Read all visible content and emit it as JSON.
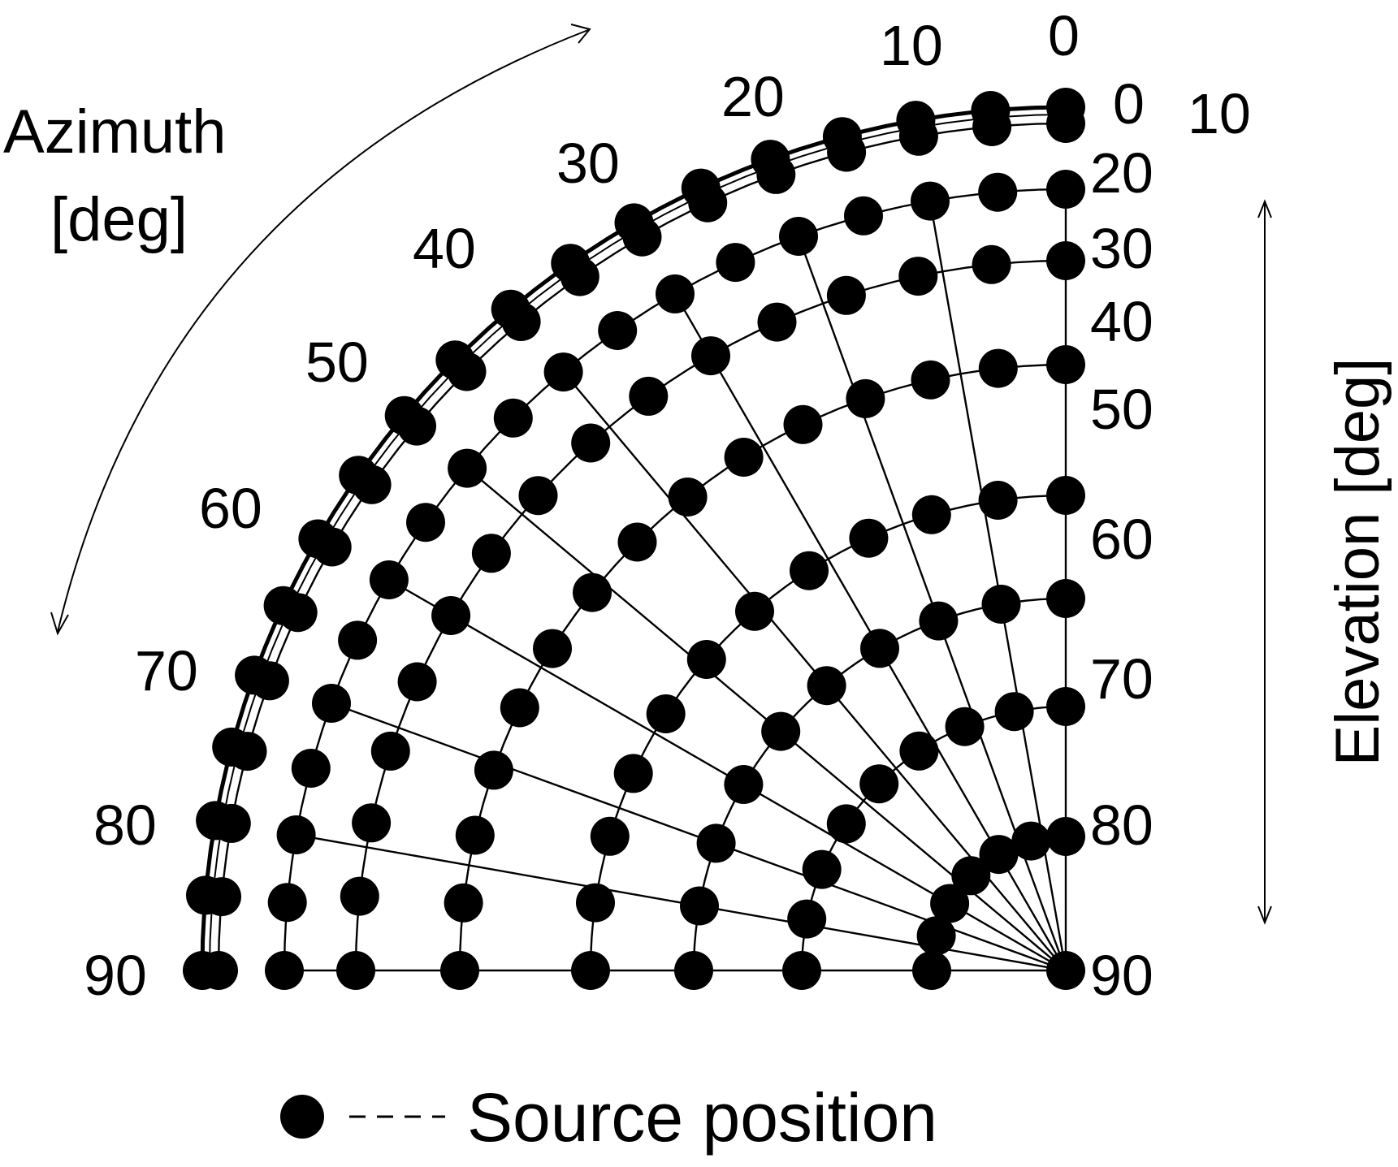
{
  "diagram": {
    "azimuth_label": [
      "Azimuth",
      "[deg]"
    ],
    "elevation_label": "Elevation [deg]",
    "azimuth_ticks": [
      "0",
      "10",
      "20",
      "30",
      "40",
      "50",
      "60",
      "70",
      "80",
      "90"
    ],
    "elevation_ticks": [
      "0",
      "10",
      "20",
      "30",
      "40",
      "50",
      "60",
      "70",
      "80",
      "90"
    ],
    "legend_label": "Source position",
    "azimuth_grid_deg": [
      0,
      10,
      20,
      30,
      40,
      50,
      60,
      70,
      80,
      90
    ],
    "elevation_rows_deg": [
      0,
      10,
      20,
      30,
      40,
      50,
      60,
      70,
      80,
      90
    ],
    "row_azimuths_deg": [
      [
        0,
        5,
        10,
        15,
        20,
        25,
        30,
        35,
        40,
        45,
        50,
        55,
        60,
        65,
        70,
        75,
        80,
        85,
        90
      ],
      [
        0,
        5,
        10,
        15,
        20,
        25,
        30,
        35,
        40,
        45,
        50,
        55,
        60,
        65,
        70,
        75,
        80,
        85,
        90
      ],
      [
        0,
        5,
        10,
        15,
        20,
        25,
        30,
        35,
        40,
        45,
        50,
        55,
        60,
        65,
        70,
        75,
        80,
        85,
        90
      ],
      [
        0,
        6,
        12,
        18,
        24,
        30,
        36,
        42,
        48,
        54,
        60,
        66,
        72,
        78,
        84,
        90
      ],
      [
        0,
        6.4,
        12.9,
        19.3,
        25.7,
        32.1,
        38.6,
        45,
        51.4,
        57.9,
        64.3,
        70.7,
        77.1,
        83.6,
        90
      ],
      [
        0,
        8.2,
        16.4,
        24.5,
        32.7,
        40.9,
        49.1,
        57.3,
        65.5,
        73.6,
        81.8,
        90
      ],
      [
        0,
        10,
        20,
        30,
        40,
        50,
        60,
        70,
        80,
        90
      ],
      [
        0,
        11.25,
        22.5,
        33.75,
        45,
        56.25,
        67.5,
        78.75,
        90
      ],
      [
        0,
        15,
        30,
        45,
        60,
        75,
        90
      ],
      [
        0
      ]
    ],
    "colors": {
      "ink": "#000000",
      "background": "#ffffff"
    }
  }
}
